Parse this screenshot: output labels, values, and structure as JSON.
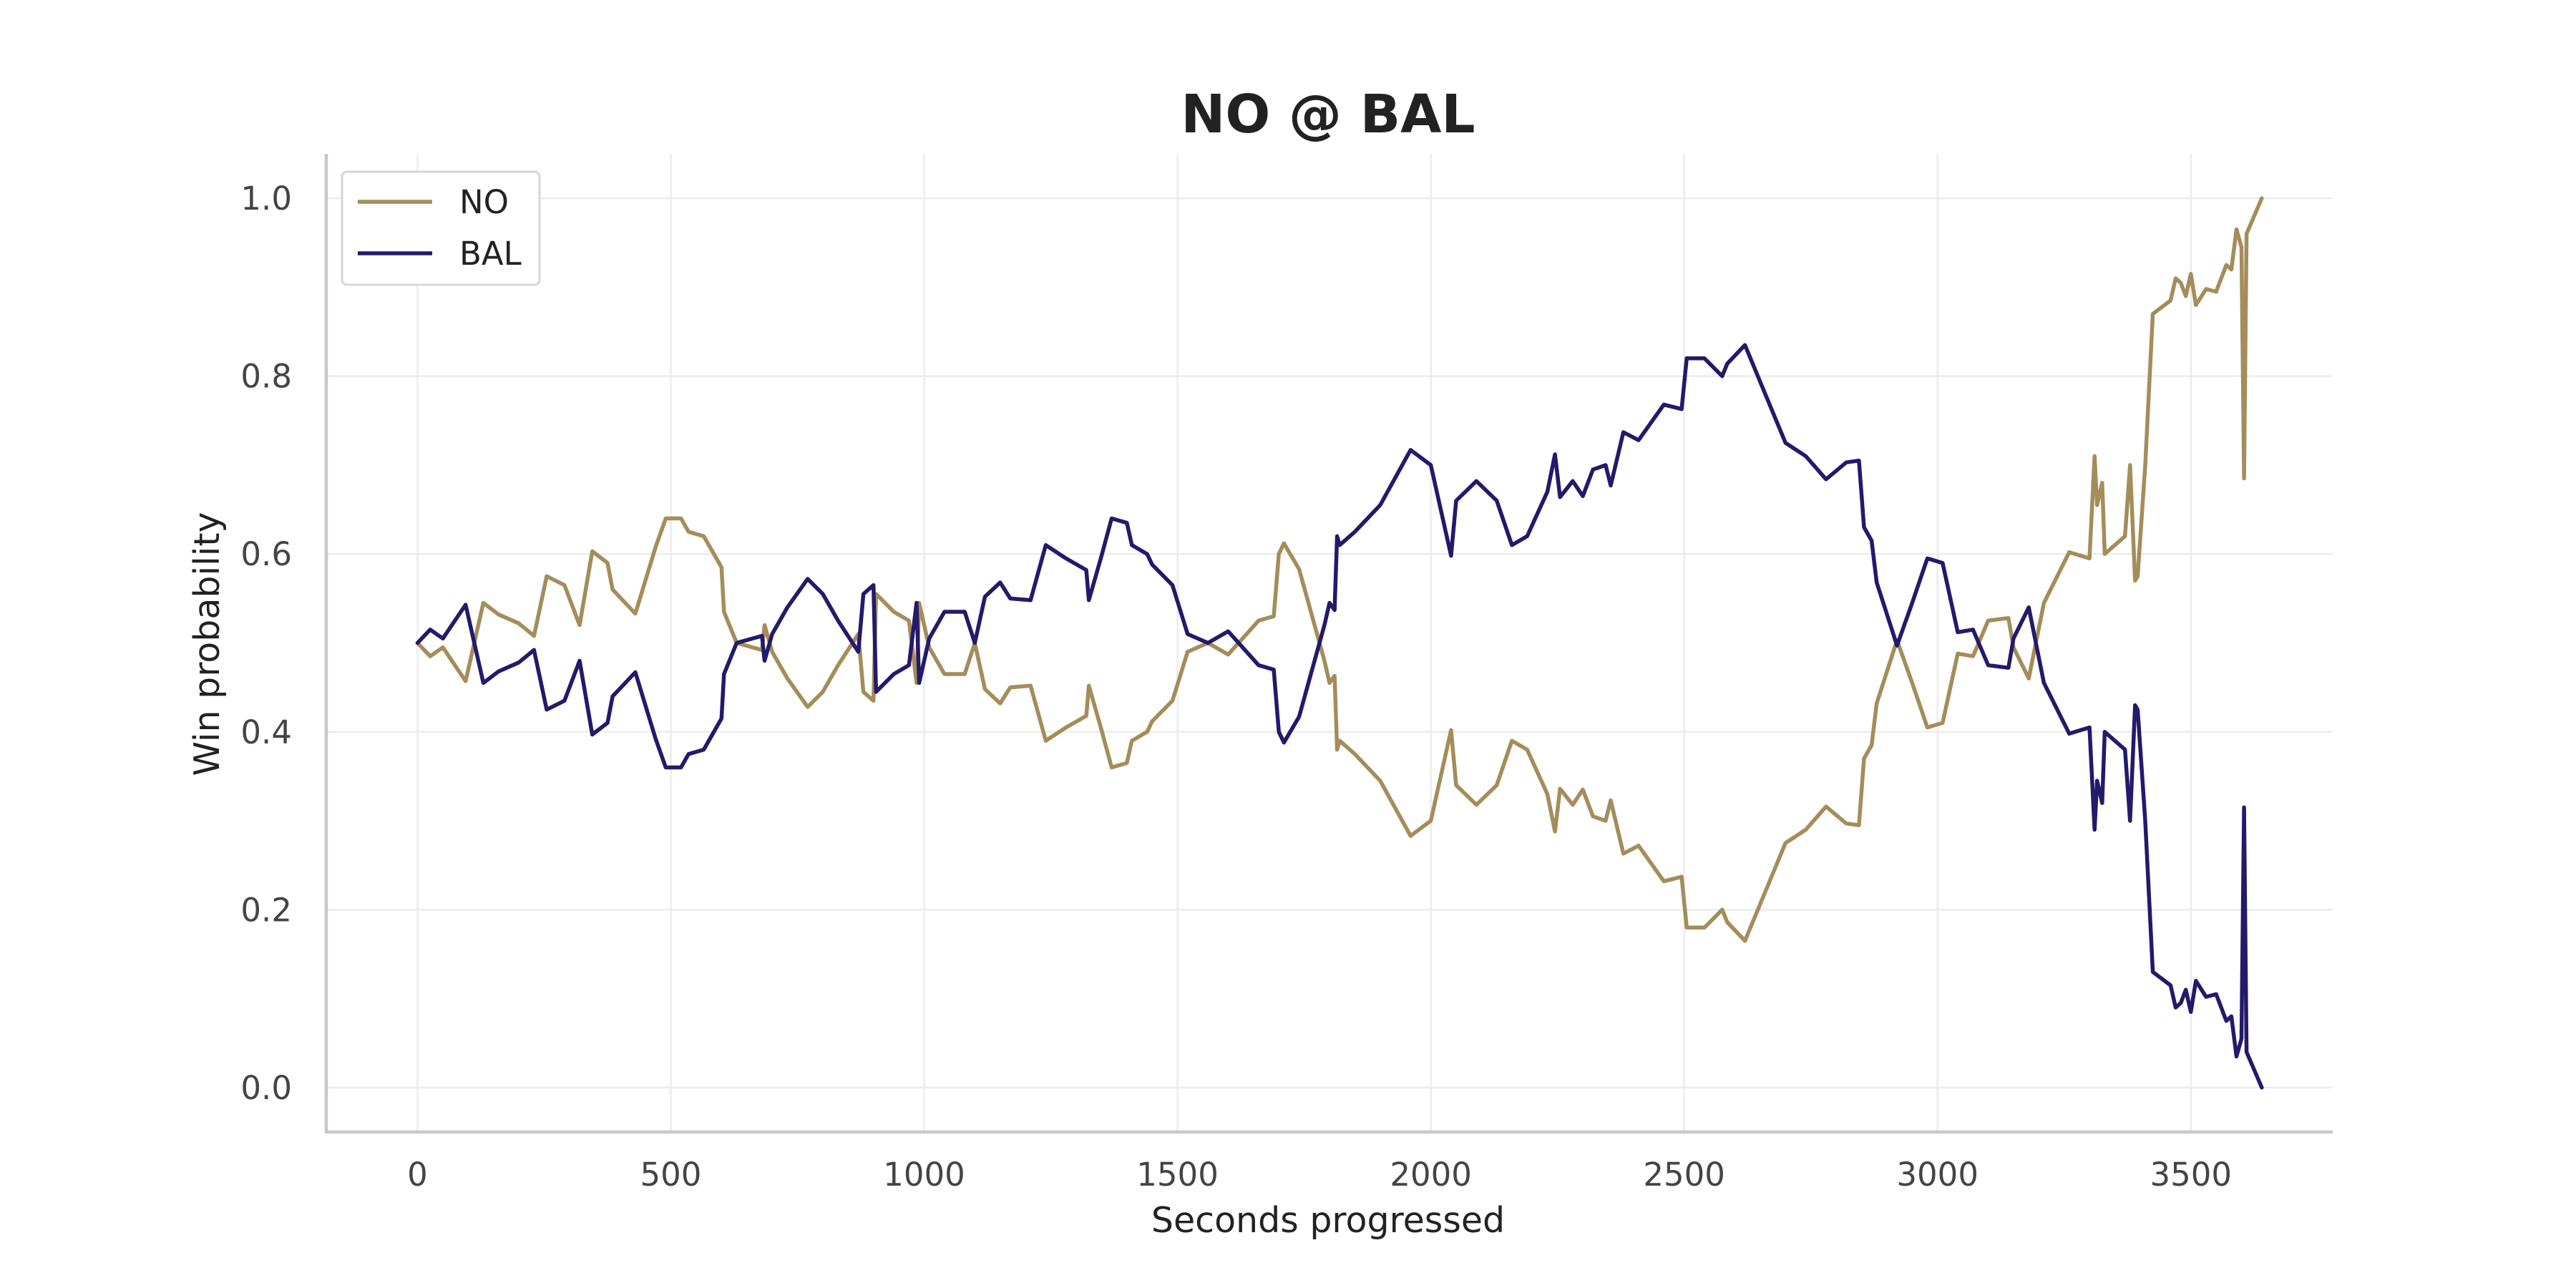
{
  "chart_data": {
    "type": "line",
    "title": "NO @ BAL",
    "xlabel": "Seconds progressed",
    "ylabel": "Win probability",
    "xlim": [
      -180,
      3780
    ],
    "ylim": [
      -0.05,
      1.05
    ],
    "xticks": [
      0,
      500,
      1000,
      1500,
      2000,
      2500,
      3000,
      3500
    ],
    "yticks": [
      0.0,
      0.2,
      0.4,
      0.6,
      0.8,
      1.0
    ],
    "xtick_labels": [
      "0",
      "500",
      "1000",
      "1500",
      "2000",
      "2500",
      "3000",
      "3500"
    ],
    "ytick_labels": [
      "0.0",
      "0.2",
      "0.4",
      "0.6",
      "0.8",
      "1.0"
    ],
    "grid": true,
    "legend_position": "top-left",
    "series": [
      {
        "name": "NO",
        "color": "#a48d5a",
        "points": [
          [
            0,
            0.5
          ],
          [
            25,
            0.485
          ],
          [
            50,
            0.495
          ],
          [
            95,
            0.457
          ],
          [
            130,
            0.545
          ],
          [
            160,
            0.532
          ],
          [
            200,
            0.522
          ],
          [
            230,
            0.508
          ],
          [
            255,
            0.575
          ],
          [
            290,
            0.565
          ],
          [
            320,
            0.52
          ],
          [
            345,
            0.603
          ],
          [
            375,
            0.59
          ],
          [
            385,
            0.56
          ],
          [
            430,
            0.533
          ],
          [
            470,
            0.608
          ],
          [
            490,
            0.64
          ],
          [
            520,
            0.64
          ],
          [
            535,
            0.625
          ],
          [
            565,
            0.62
          ],
          [
            600,
            0.585
          ],
          [
            605,
            0.535
          ],
          [
            630,
            0.5
          ],
          [
            680,
            0.492
          ],
          [
            685,
            0.52
          ],
          [
            700,
            0.49
          ],
          [
            730,
            0.46
          ],
          [
            770,
            0.428
          ],
          [
            800,
            0.445
          ],
          [
            830,
            0.475
          ],
          [
            870,
            0.51
          ],
          [
            880,
            0.445
          ],
          [
            900,
            0.435
          ],
          [
            905,
            0.555
          ],
          [
            940,
            0.535
          ],
          [
            970,
            0.525
          ],
          [
            985,
            0.455
          ],
          [
            990,
            0.545
          ],
          [
            1010,
            0.495
          ],
          [
            1040,
            0.465
          ],
          [
            1080,
            0.465
          ],
          [
            1100,
            0.5
          ],
          [
            1120,
            0.448
          ],
          [
            1150,
            0.432
          ],
          [
            1170,
            0.45
          ],
          [
            1210,
            0.452
          ],
          [
            1240,
            0.39
          ],
          [
            1280,
            0.405
          ],
          [
            1320,
            0.418
          ],
          [
            1325,
            0.452
          ],
          [
            1350,
            0.402
          ],
          [
            1370,
            0.36
          ],
          [
            1400,
            0.365
          ],
          [
            1410,
            0.39
          ],
          [
            1440,
            0.4
          ],
          [
            1450,
            0.412
          ],
          [
            1490,
            0.435
          ],
          [
            1520,
            0.49
          ],
          [
            1560,
            0.5
          ],
          [
            1600,
            0.487
          ],
          [
            1660,
            0.525
          ],
          [
            1690,
            0.53
          ],
          [
            1700,
            0.6
          ],
          [
            1710,
            0.612
          ],
          [
            1740,
            0.583
          ],
          [
            1790,
            0.48
          ],
          [
            1800,
            0.455
          ],
          [
            1810,
            0.463
          ],
          [
            1815,
            0.38
          ],
          [
            1820,
            0.39
          ],
          [
            1850,
            0.375
          ],
          [
            1900,
            0.345
          ],
          [
            1960,
            0.283
          ],
          [
            2000,
            0.3
          ],
          [
            2040,
            0.402
          ],
          [
            2050,
            0.34
          ],
          [
            2090,
            0.318
          ],
          [
            2130,
            0.34
          ],
          [
            2160,
            0.39
          ],
          [
            2190,
            0.38
          ],
          [
            2230,
            0.33
          ],
          [
            2245,
            0.288
          ],
          [
            2255,
            0.336
          ],
          [
            2280,
            0.318
          ],
          [
            2300,
            0.335
          ],
          [
            2320,
            0.305
          ],
          [
            2345,
            0.3
          ],
          [
            2355,
            0.323
          ],
          [
            2380,
            0.263
          ],
          [
            2410,
            0.272
          ],
          [
            2460,
            0.232
          ],
          [
            2495,
            0.237
          ],
          [
            2505,
            0.18
          ],
          [
            2540,
            0.18
          ],
          [
            2575,
            0.2
          ],
          [
            2585,
            0.186
          ],
          [
            2620,
            0.165
          ],
          [
            2660,
            0.22
          ],
          [
            2700,
            0.275
          ],
          [
            2740,
            0.29
          ],
          [
            2780,
            0.316
          ],
          [
            2820,
            0.297
          ],
          [
            2845,
            0.295
          ],
          [
            2855,
            0.37
          ],
          [
            2870,
            0.385
          ],
          [
            2880,
            0.432
          ],
          [
            2920,
            0.503
          ],
          [
            2950,
            0.455
          ],
          [
            2980,
            0.405
          ],
          [
            3010,
            0.41
          ],
          [
            3040,
            0.488
          ],
          [
            3070,
            0.485
          ],
          [
            3100,
            0.525
          ],
          [
            3140,
            0.528
          ],
          [
            3150,
            0.495
          ],
          [
            3180,
            0.46
          ],
          [
            3210,
            0.545
          ],
          [
            3260,
            0.602
          ],
          [
            3300,
            0.595
          ],
          [
            3310,
            0.71
          ],
          [
            3315,
            0.655
          ],
          [
            3325,
            0.68
          ],
          [
            3330,
            0.6
          ],
          [
            3370,
            0.62
          ],
          [
            3380,
            0.7
          ],
          [
            3390,
            0.57
          ],
          [
            3395,
            0.575
          ],
          [
            3410,
            0.7
          ],
          [
            3425,
            0.87
          ],
          [
            3460,
            0.885
          ],
          [
            3470,
            0.91
          ],
          [
            3480,
            0.905
          ],
          [
            3490,
            0.89
          ],
          [
            3500,
            0.915
          ],
          [
            3510,
            0.88
          ],
          [
            3530,
            0.898
          ],
          [
            3550,
            0.895
          ],
          [
            3570,
            0.925
          ],
          [
            3580,
            0.92
          ],
          [
            3590,
            0.965
          ],
          [
            3600,
            0.945
          ],
          [
            3605,
            0.685
          ],
          [
            3610,
            0.96
          ],
          [
            3640,
            1.0
          ]
        ]
      },
      {
        "name": "BAL",
        "color": "#231a6b",
        "points": [
          [
            0,
            0.5
          ],
          [
            25,
            0.515
          ],
          [
            50,
            0.505
          ],
          [
            95,
            0.543
          ],
          [
            130,
            0.455
          ],
          [
            160,
            0.468
          ],
          [
            200,
            0.478
          ],
          [
            230,
            0.492
          ],
          [
            255,
            0.425
          ],
          [
            290,
            0.435
          ],
          [
            320,
            0.48
          ],
          [
            345,
            0.397
          ],
          [
            375,
            0.41
          ],
          [
            385,
            0.44
          ],
          [
            430,
            0.467
          ],
          [
            470,
            0.392
          ],
          [
            490,
            0.36
          ],
          [
            520,
            0.36
          ],
          [
            535,
            0.375
          ],
          [
            565,
            0.38
          ],
          [
            600,
            0.415
          ],
          [
            605,
            0.465
          ],
          [
            630,
            0.5
          ],
          [
            680,
            0.508
          ],
          [
            685,
            0.48
          ],
          [
            700,
            0.51
          ],
          [
            730,
            0.54
          ],
          [
            770,
            0.572
          ],
          [
            800,
            0.555
          ],
          [
            830,
            0.525
          ],
          [
            870,
            0.49
          ],
          [
            880,
            0.555
          ],
          [
            900,
            0.565
          ],
          [
            905,
            0.445
          ],
          [
            940,
            0.465
          ],
          [
            970,
            0.475
          ],
          [
            985,
            0.545
          ],
          [
            990,
            0.455
          ],
          [
            1010,
            0.505
          ],
          [
            1040,
            0.535
          ],
          [
            1080,
            0.535
          ],
          [
            1100,
            0.5
          ],
          [
            1120,
            0.552
          ],
          [
            1150,
            0.568
          ],
          [
            1170,
            0.55
          ],
          [
            1210,
            0.548
          ],
          [
            1240,
            0.61
          ],
          [
            1280,
            0.595
          ],
          [
            1320,
            0.582
          ],
          [
            1325,
            0.548
          ],
          [
            1350,
            0.598
          ],
          [
            1370,
            0.64
          ],
          [
            1400,
            0.635
          ],
          [
            1410,
            0.61
          ],
          [
            1440,
            0.6
          ],
          [
            1450,
            0.588
          ],
          [
            1490,
            0.565
          ],
          [
            1520,
            0.51
          ],
          [
            1560,
            0.5
          ],
          [
            1600,
            0.513
          ],
          [
            1660,
            0.475
          ],
          [
            1690,
            0.47
          ],
          [
            1700,
            0.4
          ],
          [
            1710,
            0.388
          ],
          [
            1740,
            0.417
          ],
          [
            1790,
            0.52
          ],
          [
            1800,
            0.545
          ],
          [
            1810,
            0.537
          ],
          [
            1815,
            0.62
          ],
          [
            1820,
            0.61
          ],
          [
            1850,
            0.625
          ],
          [
            1900,
            0.655
          ],
          [
            1960,
            0.717
          ],
          [
            2000,
            0.7
          ],
          [
            2040,
            0.598
          ],
          [
            2050,
            0.66
          ],
          [
            2090,
            0.682
          ],
          [
            2130,
            0.66
          ],
          [
            2160,
            0.61
          ],
          [
            2190,
            0.62
          ],
          [
            2230,
            0.67
          ],
          [
            2245,
            0.712
          ],
          [
            2255,
            0.664
          ],
          [
            2280,
            0.682
          ],
          [
            2300,
            0.665
          ],
          [
            2320,
            0.695
          ],
          [
            2345,
            0.7
          ],
          [
            2355,
            0.677
          ],
          [
            2380,
            0.737
          ],
          [
            2410,
            0.728
          ],
          [
            2460,
            0.768
          ],
          [
            2495,
            0.763
          ],
          [
            2505,
            0.82
          ],
          [
            2540,
            0.82
          ],
          [
            2575,
            0.8
          ],
          [
            2585,
            0.814
          ],
          [
            2620,
            0.835
          ],
          [
            2660,
            0.78
          ],
          [
            2700,
            0.725
          ],
          [
            2740,
            0.71
          ],
          [
            2780,
            0.684
          ],
          [
            2820,
            0.703
          ],
          [
            2845,
            0.705
          ],
          [
            2855,
            0.63
          ],
          [
            2870,
            0.615
          ],
          [
            2880,
            0.568
          ],
          [
            2920,
            0.497
          ],
          [
            2950,
            0.545
          ],
          [
            2980,
            0.595
          ],
          [
            3010,
            0.59
          ],
          [
            3040,
            0.512
          ],
          [
            3070,
            0.515
          ],
          [
            3100,
            0.475
          ],
          [
            3140,
            0.472
          ],
          [
            3150,
            0.505
          ],
          [
            3180,
            0.54
          ],
          [
            3210,
            0.455
          ],
          [
            3260,
            0.398
          ],
          [
            3300,
            0.405
          ],
          [
            3310,
            0.29
          ],
          [
            3315,
            0.345
          ],
          [
            3325,
            0.32
          ],
          [
            3330,
            0.4
          ],
          [
            3370,
            0.38
          ],
          [
            3380,
            0.3
          ],
          [
            3390,
            0.43
          ],
          [
            3395,
            0.425
          ],
          [
            3410,
            0.3
          ],
          [
            3425,
            0.13
          ],
          [
            3460,
            0.115
          ],
          [
            3470,
            0.09
          ],
          [
            3480,
            0.095
          ],
          [
            3490,
            0.11
          ],
          [
            3500,
            0.085
          ],
          [
            3510,
            0.12
          ],
          [
            3530,
            0.102
          ],
          [
            3550,
            0.105
          ],
          [
            3570,
            0.075
          ],
          [
            3580,
            0.08
          ],
          [
            3590,
            0.035
          ],
          [
            3600,
            0.055
          ],
          [
            3605,
            0.315
          ],
          [
            3610,
            0.04
          ],
          [
            3640,
            0.0
          ]
        ]
      }
    ]
  }
}
